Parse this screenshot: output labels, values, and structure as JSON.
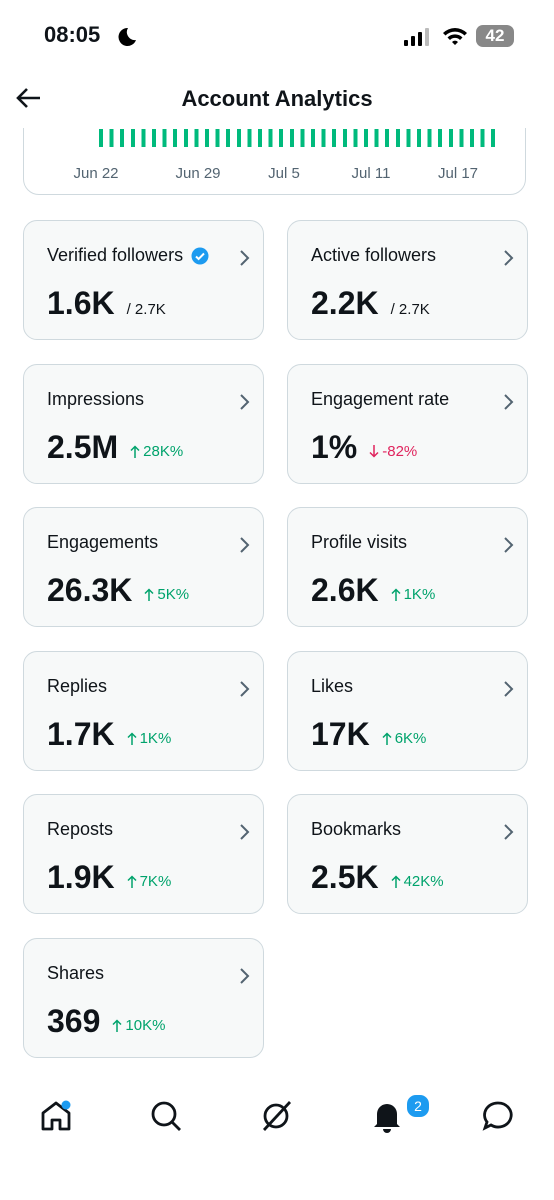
{
  "status_bar": {
    "time": "08:05",
    "battery": "42"
  },
  "header": {
    "title": "Account Analytics"
  },
  "chart": {
    "x_labels": [
      "Jun 22",
      "Jun 29",
      "Jul 5",
      "Jul 11",
      "Jul 17"
    ]
  },
  "cards": [
    {
      "label": "Verified followers",
      "verified": true,
      "value": "1.6K",
      "total": "/ 2.7K"
    },
    {
      "label": "Active followers",
      "value": "2.2K",
      "total": "/ 2.7K"
    },
    {
      "label": "Impressions",
      "value": "2.5M",
      "change": "28K%",
      "trend": "up"
    },
    {
      "label": "Engagement rate",
      "value": "1%",
      "change": "-82%",
      "trend": "down"
    },
    {
      "label": "Engagements",
      "value": "26.3K",
      "change": "5K%",
      "trend": "up"
    },
    {
      "label": "Profile visits",
      "value": "2.6K",
      "change": "1K%",
      "trend": "up"
    },
    {
      "label": "Replies",
      "value": "1.7K",
      "change": "1K%",
      "trend": "up"
    },
    {
      "label": "Likes",
      "value": "17K",
      "change": "6K%",
      "trend": "up"
    },
    {
      "label": "Reposts",
      "value": "1.9K",
      "change": "7K%",
      "trend": "up"
    },
    {
      "label": "Bookmarks",
      "value": "2.5K",
      "change": "42K%",
      "trend": "up"
    },
    {
      "label": "Shares",
      "value": "369",
      "change": "10K%",
      "trend": "up"
    }
  ],
  "nav": {
    "notifications_badge": "2"
  }
}
